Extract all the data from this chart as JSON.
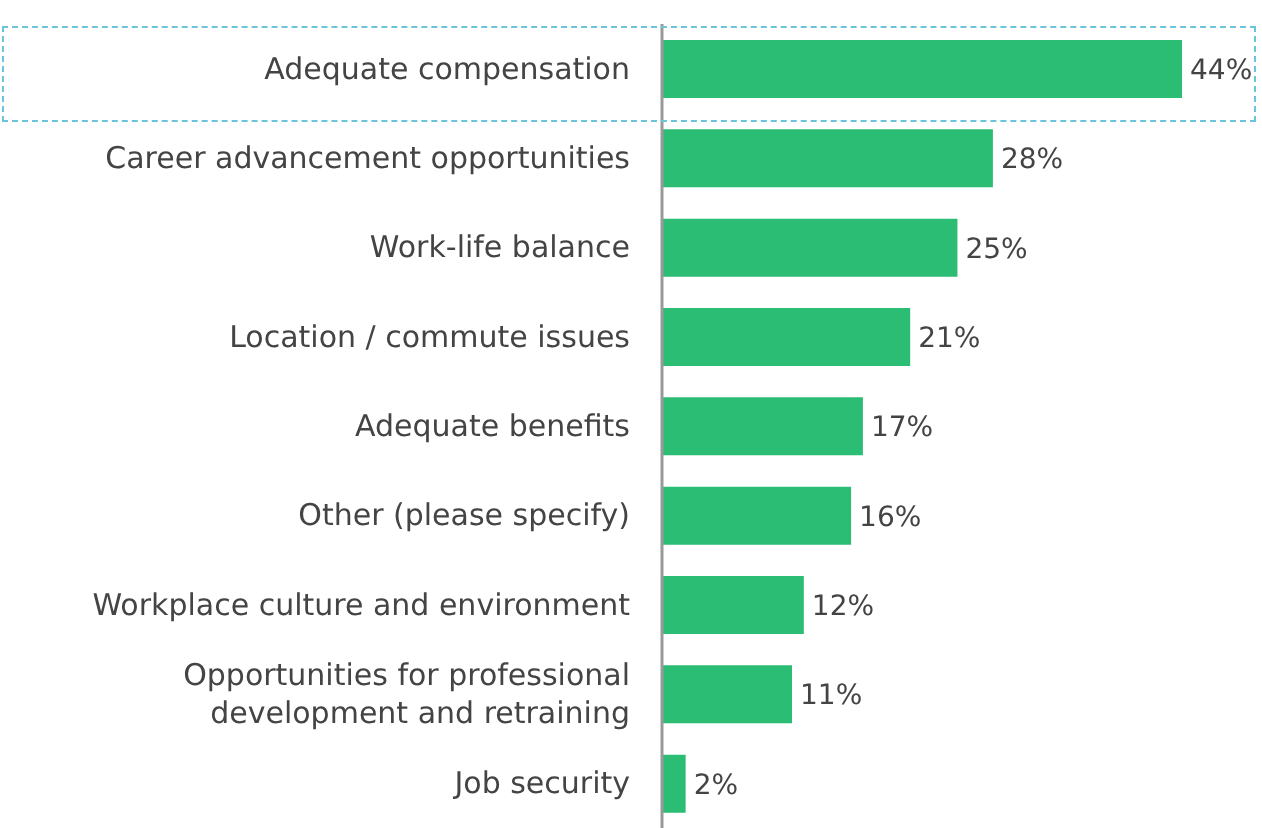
{
  "chart_data": {
    "type": "bar",
    "orientation": "horizontal",
    "categories": [
      "Adequate compensation",
      "Career advancement opportunities",
      "Work-life balance",
      "Location / commute issues",
      "Adequate benefits",
      "Other (please specify)",
      "Workplace culture and environment",
      "Opportunities for professional\ndevelopment and retraining",
      "Job security"
    ],
    "values": [
      44,
      28,
      25,
      21,
      17,
      16,
      12,
      11,
      2
    ],
    "value_labels": [
      "44%",
      "28%",
      "25%",
      "21%",
      "17%",
      "16%",
      "12%",
      "11%",
      "2%"
    ],
    "color": "#2bbd73"
  }
}
